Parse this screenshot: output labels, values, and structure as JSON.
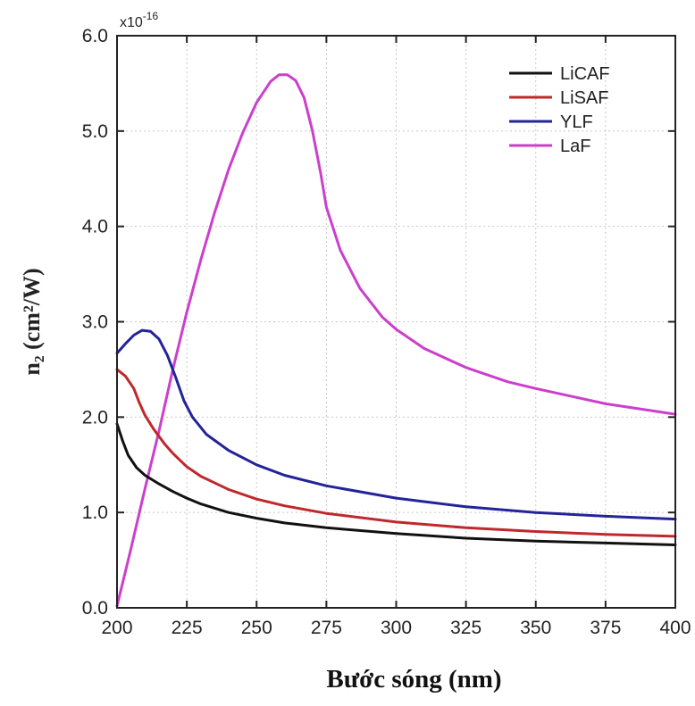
{
  "chart_data": {
    "type": "line",
    "xlabel": "Bước sóng (nm)",
    "ylabel": "n₂ (cm²/W)",
    "y_multiplier": "x10",
    "y_multiplier_exponent": "-16",
    "xlim": [
      200,
      400
    ],
    "ylim": [
      0,
      6
    ],
    "x_ticks": [
      "200",
      "225",
      "250",
      "275",
      "300",
      "325",
      "350",
      "375",
      "400"
    ],
    "y_ticks": [
      "0.0",
      "1.0",
      "2.0",
      "3.0",
      "4.0",
      "5.0",
      "6.0"
    ],
    "grid": true,
    "legend_position": "top-right",
    "series": [
      {
        "name": "LiCAF",
        "color": "#111111",
        "points": [
          [
            200,
            1.93
          ],
          [
            202,
            1.75
          ],
          [
            204,
            1.6
          ],
          [
            207,
            1.47
          ],
          [
            210,
            1.39
          ],
          [
            215,
            1.3
          ],
          [
            220,
            1.22
          ],
          [
            225,
            1.15
          ],
          [
            230,
            1.09
          ],
          [
            240,
            1.0
          ],
          [
            250,
            0.94
          ],
          [
            260,
            0.89
          ],
          [
            275,
            0.84
          ],
          [
            300,
            0.78
          ],
          [
            325,
            0.73
          ],
          [
            350,
            0.7
          ],
          [
            375,
            0.68
          ],
          [
            400,
            0.66
          ]
        ]
      },
      {
        "name": "LiSAF",
        "color": "#c0282c",
        "points": [
          [
            200,
            2.5
          ],
          [
            203,
            2.43
          ],
          [
            206,
            2.3
          ],
          [
            208,
            2.15
          ],
          [
            210,
            2.02
          ],
          [
            213,
            1.88
          ],
          [
            217,
            1.72
          ],
          [
            220,
            1.62
          ],
          [
            225,
            1.48
          ],
          [
            230,
            1.38
          ],
          [
            240,
            1.24
          ],
          [
            250,
            1.14
          ],
          [
            260,
            1.07
          ],
          [
            275,
            0.99
          ],
          [
            300,
            0.9
          ],
          [
            325,
            0.84
          ],
          [
            350,
            0.8
          ],
          [
            375,
            0.77
          ],
          [
            400,
            0.75
          ]
        ]
      },
      {
        "name": "YLF",
        "color": "#23239a",
        "points": [
          [
            200,
            2.67
          ],
          [
            203,
            2.77
          ],
          [
            206,
            2.86
          ],
          [
            209,
            2.91
          ],
          [
            212,
            2.9
          ],
          [
            215,
            2.82
          ],
          [
            218,
            2.65
          ],
          [
            221,
            2.42
          ],
          [
            224,
            2.17
          ],
          [
            227,
            2.0
          ],
          [
            232,
            1.82
          ],
          [
            240,
            1.65
          ],
          [
            250,
            1.5
          ],
          [
            260,
            1.39
          ],
          [
            275,
            1.28
          ],
          [
            300,
            1.15
          ],
          [
            325,
            1.06
          ],
          [
            350,
            1.0
          ],
          [
            375,
            0.96
          ],
          [
            400,
            0.93
          ]
        ]
      },
      {
        "name": "LaF",
        "color": "#cc3fcc",
        "points": [
          [
            200,
            0.02
          ],
          [
            205,
            0.62
          ],
          [
            210,
            1.25
          ],
          [
            215,
            1.85
          ],
          [
            220,
            2.5
          ],
          [
            225,
            3.1
          ],
          [
            230,
            3.65
          ],
          [
            235,
            4.15
          ],
          [
            240,
            4.6
          ],
          [
            245,
            4.98
          ],
          [
            250,
            5.3
          ],
          [
            255,
            5.52
          ],
          [
            258,
            5.59
          ],
          [
            261,
            5.59
          ],
          [
            264,
            5.53
          ],
          [
            267,
            5.35
          ],
          [
            270,
            5.0
          ],
          [
            273,
            4.55
          ],
          [
            275,
            4.2
          ],
          [
            280,
            3.75
          ],
          [
            287,
            3.35
          ],
          [
            295,
            3.05
          ],
          [
            300,
            2.92
          ],
          [
            310,
            2.72
          ],
          [
            325,
            2.52
          ],
          [
            340,
            2.37
          ],
          [
            350,
            2.3
          ],
          [
            375,
            2.14
          ],
          [
            400,
            2.03
          ]
        ]
      }
    ]
  }
}
